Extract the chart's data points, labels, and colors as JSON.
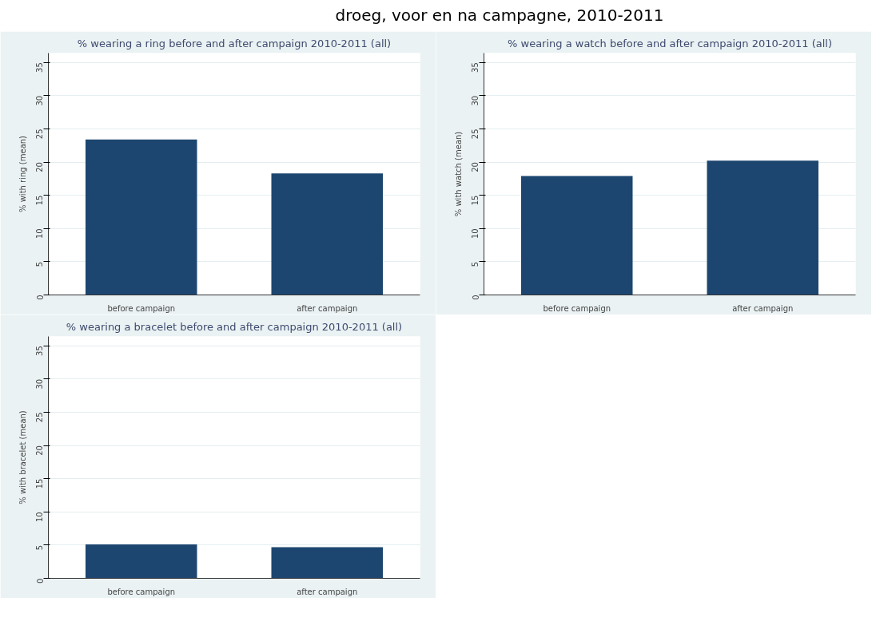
{
  "chart_data": [
    {
      "type": "bar",
      "title": "% wearing a ring before and after campaign 2010-2011 (all)",
      "ylabel": "% with ring (mean)",
      "categories": [
        "before campaign",
        "after campaign"
      ],
      "values": [
        23.4,
        18.3
      ],
      "color": "#1c4670",
      "ylim": [
        0,
        36.4
      ],
      "yticks": [
        0,
        5,
        10,
        15,
        20,
        25,
        30,
        35
      ],
      "grid": "y",
      "annotations": [
        "droeg, voor en na campagne, 2010-2011"
      ]
    },
    {
      "type": "bar",
      "title": "% wearing a watch before and after campaign 2010-2011 (all)",
      "ylabel": "% with watch (mean)",
      "categories": [
        "before campaign",
        "after campaign"
      ],
      "values": [
        17.9,
        20.2
      ],
      "color": "#1c4670",
      "ylim": [
        0,
        36.4
      ],
      "yticks": [
        0,
        5,
        10,
        15,
        20,
        25,
        30,
        35
      ],
      "grid": "y"
    },
    {
      "type": "bar",
      "title": "% wearing a bracelet before and after campaign 2010-2011 (all)",
      "ylabel": "% with bracelet (mean)",
      "categories": [
        "before campaign",
        "after campaign"
      ],
      "values": [
        5.1,
        4.7
      ],
      "color": "#1c4670",
      "ylim": [
        0,
        36.4
      ],
      "yticks": [
        0,
        5,
        10,
        15,
        20,
        25,
        30,
        35
      ],
      "grid": "y"
    }
  ]
}
